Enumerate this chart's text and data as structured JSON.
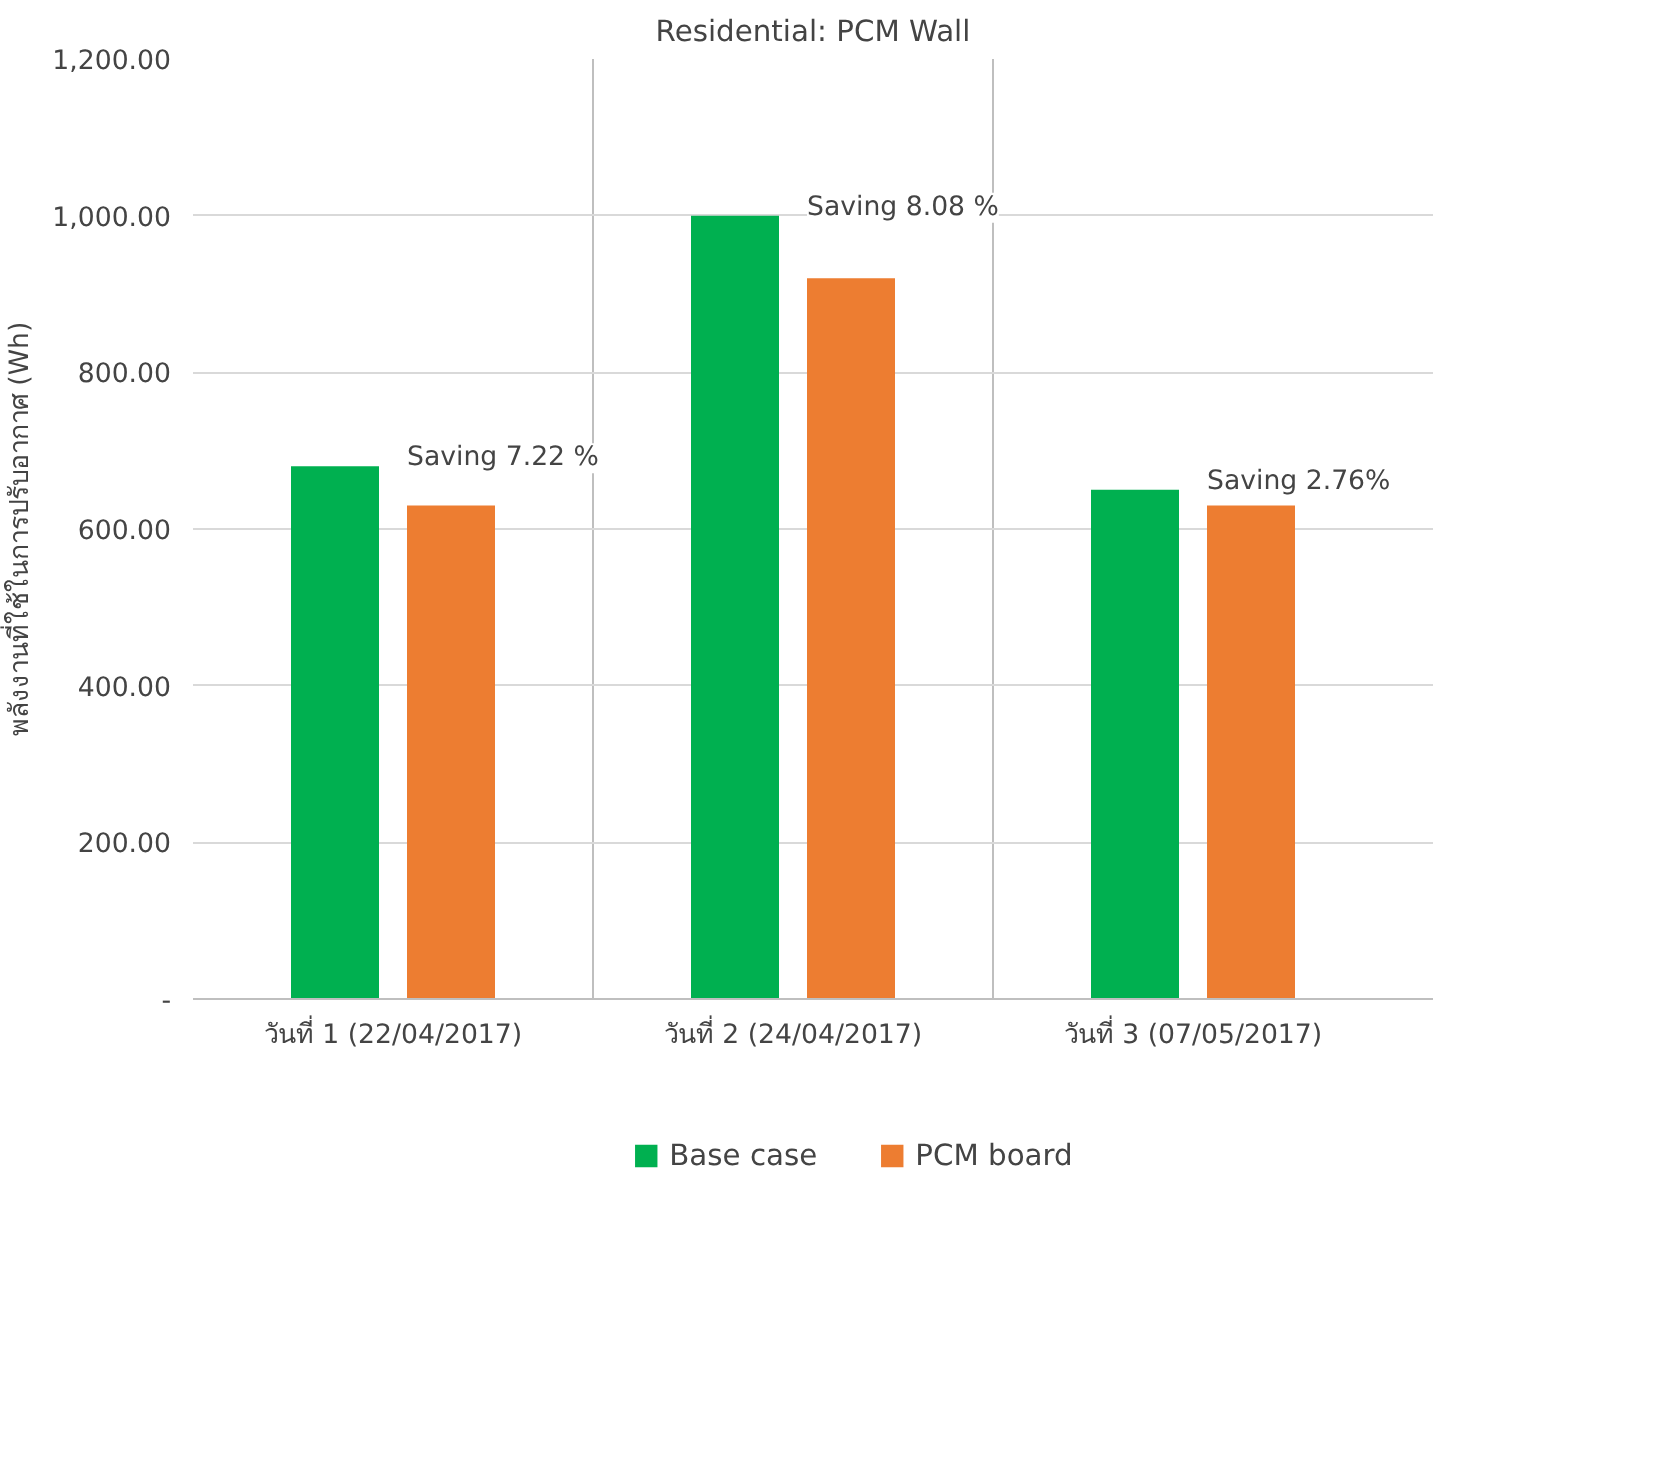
{
  "chart_data": {
    "type": "bar",
    "title": "Residential: PCM Wall",
    "ylabel": "พลังงานที่ใช้ในการปรับอากาศ (Wh)",
    "categories": [
      "วันที่ 1 (22/04/2017)",
      "วันที่ 2 (24/04/2017)",
      "วันที่ 3 (07/05/2017)"
    ],
    "series": [
      {
        "name": "Base case",
        "color": "#00b050",
        "values": [
          680,
          1000,
          650
        ]
      },
      {
        "name": "PCM board",
        "color": "#ed7d31",
        "values": [
          630,
          920,
          630
        ]
      }
    ],
    "ylim": [
      0,
      1200
    ],
    "yticks": [
      {
        "value": 0,
        "label": "-"
      },
      {
        "value": 200,
        "label": "200.00"
      },
      {
        "value": 400,
        "label": "400.00"
      },
      {
        "value": 600,
        "label": "600.00"
      },
      {
        "value": 800,
        "label": "800.00"
      },
      {
        "value": 1000,
        "label": "1,000.00"
      },
      {
        "value": 1200,
        "label": "1,200.00"
      }
    ],
    "annotations": [
      "Saving 7.22 %",
      "Saving 8.08 %",
      "Saving 2.76%"
    ],
    "grid": true,
    "legend": "bottom"
  }
}
